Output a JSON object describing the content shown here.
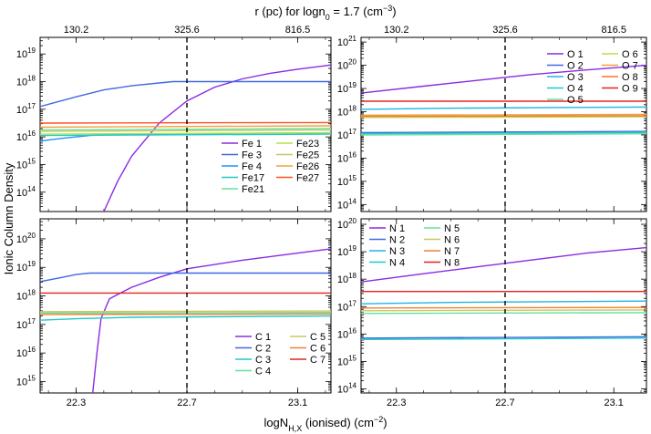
{
  "figure": {
    "top_title": "r (pc) for logn",
    "top_title_sub": "0",
    "top_title_tail": " = 1.7 (cm",
    "top_title_sup": "−3",
    "top_title_end": ")",
    "xlabel": "logN",
    "xlabel_sub": "H,X",
    "xlabel_tail": " (ionised) (cm",
    "xlabel_sup": "−2",
    "xlabel_end": ")",
    "ylabel": "Ionic Column Density"
  },
  "chart_data": [
    {
      "type": "line",
      "panel": "top-left",
      "xlim": [
        22.17,
        23.22
      ],
      "ylog": [
        13.3,
        19.6
      ],
      "x_ticks": [
        22.3,
        22.7,
        23.1
      ],
      "x_tick_labels": [
        "",
        "",
        ""
      ],
      "top_ticks": [
        "130.2",
        "325.6",
        "816.5"
      ],
      "y_tick_exps": [
        14,
        15,
        16,
        17,
        18,
        19
      ],
      "vline_x": 22.7,
      "legend_cols": 2,
      "series": [
        {
          "name": "Fe 1",
          "color": "#8a2be2",
          "pts": [
            [
              22.4,
              13.3
            ],
            [
              22.45,
              14.4
            ],
            [
              22.5,
              15.3
            ],
            [
              22.55,
              15.9
            ],
            [
              22.6,
              16.5
            ],
            [
              22.7,
              17.3
            ],
            [
              22.8,
              17.8
            ],
            [
              22.9,
              18.1
            ],
            [
              23.0,
              18.3
            ],
            [
              23.1,
              18.45
            ],
            [
              23.22,
              18.6
            ]
          ]
        },
        {
          "name": "Fe 3",
          "color": "#4169e1",
          "pts": [
            [
              22.17,
              17.1
            ],
            [
              22.3,
              17.45
            ],
            [
              22.4,
              17.7
            ],
            [
              22.5,
              17.85
            ],
            [
              22.6,
              17.95
            ],
            [
              22.65,
              18.0
            ],
            [
              23.22,
              18.0
            ]
          ]
        },
        {
          "name": "Fe 4",
          "color": "#1e90ff",
          "pts": [
            [
              22.17,
              15.85
            ],
            [
              22.25,
              15.95
            ],
            [
              22.35,
              16.05
            ],
            [
              22.45,
              16.1
            ],
            [
              23.22,
              16.15
            ]
          ]
        },
        {
          "name": "Fe17",
          "color": "#20c9c9",
          "pts": [
            [
              22.17,
              16.05
            ],
            [
              23.22,
              16.1
            ]
          ]
        },
        {
          "name": "Fe21",
          "color": "#66e0a0",
          "pts": [
            [
              22.17,
              16.25
            ],
            [
              23.22,
              16.3
            ]
          ]
        },
        {
          "name": "Fe23",
          "color": "#b0e050",
          "pts": [
            [
              22.17,
              16.1
            ],
            [
              23.22,
              16.15
            ]
          ]
        },
        {
          "name": "Fe25",
          "color": "#c8c864",
          "pts": [
            [
              22.17,
              16.2
            ],
            [
              23.22,
              16.25
            ]
          ]
        },
        {
          "name": "Fe26",
          "color": "#f0a040",
          "pts": [
            [
              22.17,
              16.35
            ],
            [
              23.22,
              16.4
            ]
          ]
        },
        {
          "name": "Fe27",
          "color": "#ff5020",
          "pts": [
            [
              22.17,
              16.5
            ],
            [
              23.22,
              16.52
            ]
          ]
        }
      ]
    },
    {
      "type": "line",
      "panel": "top-right",
      "xlim": [
        22.17,
        23.22
      ],
      "ylog": [
        13.7,
        21.2
      ],
      "x_ticks": [
        22.3,
        22.7,
        23.1
      ],
      "x_tick_labels": [
        "",
        "",
        ""
      ],
      "top_ticks": [
        "130.2",
        "325.6",
        "816.5"
      ],
      "y_tick_exps": [
        14,
        15,
        16,
        17,
        18,
        19,
        20,
        21
      ],
      "vline_x": 22.7,
      "legend_cols": 2,
      "series": [
        {
          "name": "O 1",
          "color": "#8a2be2",
          "pts": [
            [
              22.17,
              18.8
            ],
            [
              22.4,
              19.1
            ],
            [
              22.6,
              19.35
            ],
            [
              22.8,
              19.6
            ],
            [
              23.0,
              19.8
            ],
            [
              23.22,
              20.0
            ]
          ]
        },
        {
          "name": "O 2",
          "color": "#4169e1",
          "pts": [
            [
              22.17,
              17.1
            ],
            [
              23.22,
              17.15
            ]
          ]
        },
        {
          "name": "O 3",
          "color": "#1eb4e6",
          "pts": [
            [
              22.17,
              18.1
            ],
            [
              22.5,
              18.15
            ],
            [
              23.22,
              18.2
            ]
          ]
        },
        {
          "name": "O 4",
          "color": "#20c9c9",
          "pts": [
            [
              22.17,
              17.05
            ],
            [
              23.22,
              17.1
            ]
          ]
        },
        {
          "name": "O 5",
          "color": "#66e0a0",
          "pts": [
            [
              22.17,
              17.0
            ],
            [
              23.22,
              17.05
            ]
          ]
        },
        {
          "name": "O 6",
          "color": "#b0e050",
          "pts": [
            [
              22.17,
              17.75
            ],
            [
              23.22,
              17.78
            ]
          ]
        },
        {
          "name": "O 7",
          "color": "#f0a040",
          "pts": [
            [
              22.17,
              17.85
            ],
            [
              23.22,
              17.88
            ]
          ]
        },
        {
          "name": "O 8",
          "color": "#ff7030",
          "pts": [
            [
              22.17,
              17.8
            ],
            [
              23.22,
              17.82
            ]
          ]
        },
        {
          "name": "O 9",
          "color": "#e82020",
          "pts": [
            [
              22.17,
              18.45
            ],
            [
              23.22,
              18.45
            ]
          ]
        }
      ]
    },
    {
      "type": "line",
      "panel": "bottom-left",
      "xlim": [
        22.17,
        23.22
      ],
      "ylog": [
        14.6,
        20.7
      ],
      "x_ticks": [
        22.3,
        22.7,
        23.1
      ],
      "x_tick_labels": [
        "22.3",
        "22.7",
        "23.1"
      ],
      "top_ticks": [],
      "y_tick_exps": [
        15,
        16,
        17,
        18,
        19,
        20
      ],
      "vline_x": 22.7,
      "legend_cols": 2,
      "series": [
        {
          "name": "C 1",
          "color": "#8a2be2",
          "pts": [
            [
              22.36,
              14.6
            ],
            [
              22.375,
              16.0
            ],
            [
              22.39,
              17.2
            ],
            [
              22.42,
              17.9
            ],
            [
              22.5,
              18.3
            ],
            [
              22.6,
              18.65
            ],
            [
              22.7,
              18.95
            ],
            [
              22.9,
              19.25
            ],
            [
              23.1,
              19.5
            ],
            [
              23.22,
              19.65
            ]
          ]
        },
        {
          "name": "C 2",
          "color": "#4169e1",
          "pts": [
            [
              22.17,
              18.5
            ],
            [
              22.25,
              18.65
            ],
            [
              22.3,
              18.75
            ],
            [
              22.35,
              18.8
            ],
            [
              23.22,
              18.8
            ]
          ]
        },
        {
          "name": "C 3",
          "color": "#20c9c9",
          "pts": [
            [
              22.17,
              17.15
            ],
            [
              22.3,
              17.2
            ],
            [
              22.5,
              17.25
            ],
            [
              23.22,
              17.3
            ]
          ]
        },
        {
          "name": "C 4",
          "color": "#66e0a0",
          "pts": [
            [
              22.17,
              17.4
            ],
            [
              23.22,
              17.42
            ]
          ]
        },
        {
          "name": "C 5",
          "color": "#c8c864",
          "pts": [
            [
              22.17,
              17.45
            ],
            [
              23.22,
              17.47
            ]
          ]
        },
        {
          "name": "C 6",
          "color": "#f08030",
          "pts": [
            [
              22.17,
              17.35
            ],
            [
              23.22,
              17.37
            ]
          ]
        },
        {
          "name": "C 7",
          "color": "#e82020",
          "pts": [
            [
              22.17,
              18.1
            ],
            [
              23.22,
              18.1
            ]
          ]
        }
      ]
    },
    {
      "type": "line",
      "panel": "bottom-right",
      "xlim": [
        22.17,
        23.22
      ],
      "ylog": [
        13.85,
        20.2
      ],
      "x_ticks": [
        22.3,
        22.7,
        23.1
      ],
      "x_tick_labels": [
        "22.3",
        "22.7",
        "23.1"
      ],
      "top_ticks": [],
      "y_tick_exps": [
        14,
        15,
        16,
        17,
        18,
        19,
        20
      ],
      "vline_x": 22.7,
      "legend_cols": 2,
      "series": [
        {
          "name": "N 1",
          "color": "#8a2be2",
          "pts": [
            [
              22.17,
              17.9
            ],
            [
              22.4,
              18.2
            ],
            [
              22.6,
              18.45
            ],
            [
              22.8,
              18.7
            ],
            [
              23.0,
              18.95
            ],
            [
              23.22,
              19.15
            ]
          ]
        },
        {
          "name": "N 2",
          "color": "#4169e1",
          "pts": [
            [
              22.17,
              15.85
            ],
            [
              23.22,
              15.9
            ]
          ]
        },
        {
          "name": "N 3",
          "color": "#1eb4e6",
          "pts": [
            [
              22.17,
              17.1
            ],
            [
              22.5,
              17.15
            ],
            [
              23.22,
              17.2
            ]
          ]
        },
        {
          "name": "N 4",
          "color": "#20c9c9",
          "pts": [
            [
              22.17,
              15.8
            ],
            [
              23.22,
              15.85
            ]
          ]
        },
        {
          "name": "N 5",
          "color": "#66e0a0",
          "pts": [
            [
              22.17,
              16.75
            ],
            [
              23.22,
              16.78
            ]
          ]
        },
        {
          "name": "N 6",
          "color": "#c8c864",
          "pts": [
            [
              22.17,
              16.85
            ],
            [
              23.22,
              16.88
            ]
          ]
        },
        {
          "name": "N 7",
          "color": "#f08030",
          "pts": [
            [
              22.17,
              16.95
            ],
            [
              23.22,
              16.97
            ]
          ]
        },
        {
          "name": "N 8",
          "color": "#e82020",
          "pts": [
            [
              22.17,
              17.55
            ],
            [
              23.22,
              17.55
            ]
          ]
        }
      ]
    }
  ]
}
